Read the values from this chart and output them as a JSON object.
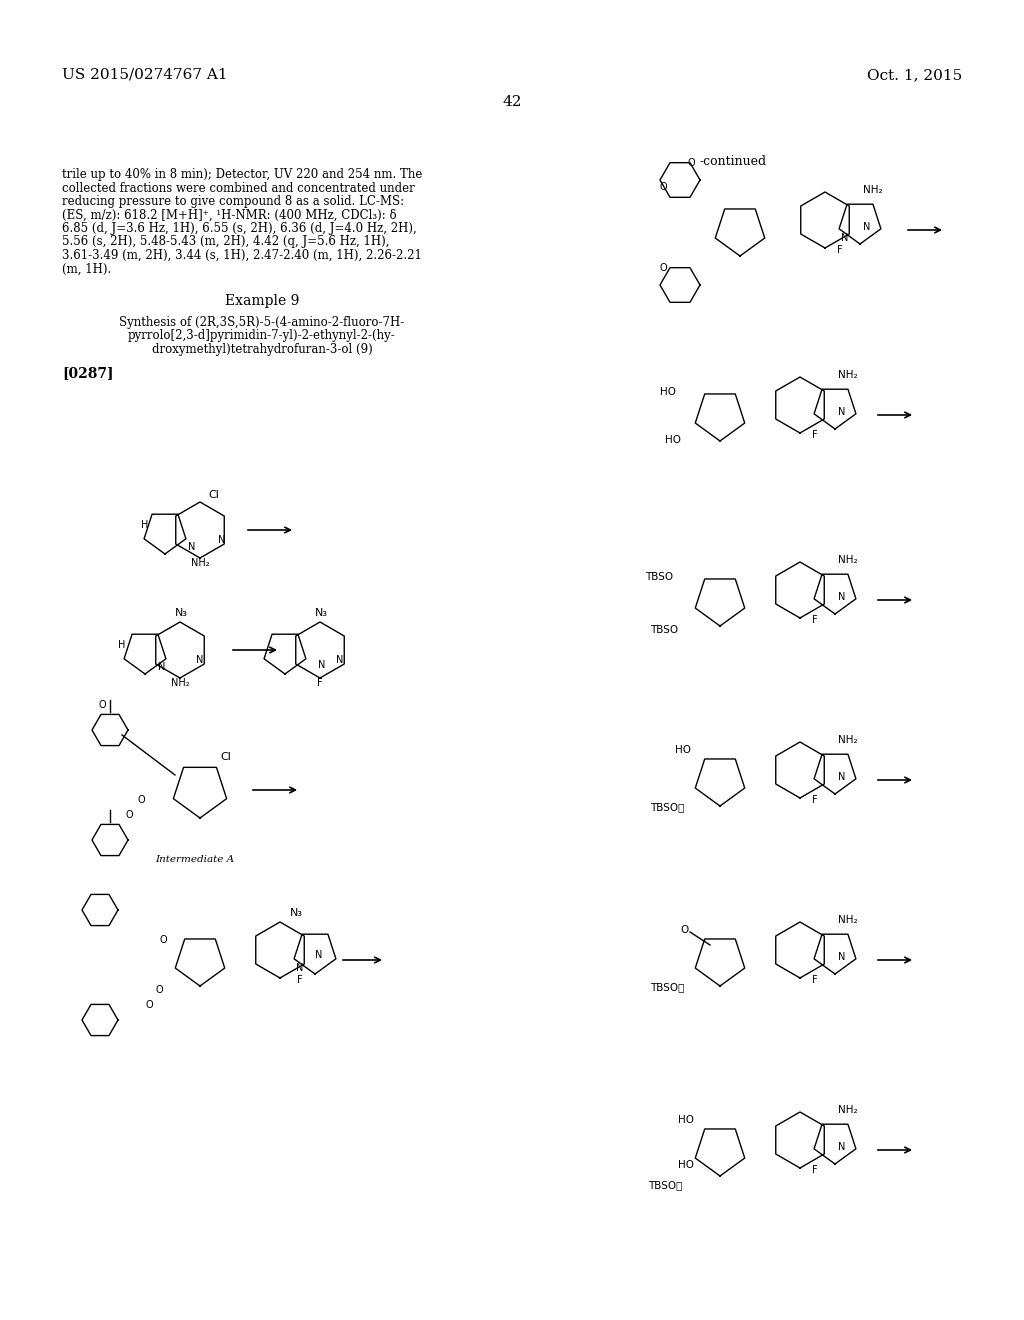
{
  "bg_color": "#ffffff",
  "header_left": "US 2015/0274767 A1",
  "header_right": "Oct. 1, 2015",
  "page_number": "42",
  "continued_label": "-continued",
  "paragraph_text": "trile up to 40% in 8 min); Detector, UV 220 and 254 nm. The collected fractions were combined and concentrated under reducing pressure to give compound 8 as a solid. LC-MS: (ES, m/z): 618.2 [M+H]⁺, ¹H-NMR: (400 MHz, CDCl₃): δ 6.85 (d, J=3.6 Hz, 1H), 6.55 (s, 2H), 6.36 (d, J=4.0 Hz, 2H), 5.56 (s, 2H), 5.48-5.43 (m, 2H), 4.42 (q, J=5.6 Hz, 1H), 3.61-3.49 (m, 2H), 3.44 (s, 1H), 2.47-2.40 (m, 1H), 2.26-2.21 (m, 1H).",
  "example_title": "Example 9",
  "synthesis_title": "Synthesis of (2R,3S,5R)-5-(4-amino-2-fluoro-7H-\npyrrolo[2,3-d]pyrimidin-7-yl)-2-ethynyl-2-(hy-\ndroxymethyl)tetrahydrofuran-3-ol (9)",
  "paragraph_ref": "[0287]",
  "intermediate_label": "Intermediate A",
  "font_size_header": 11,
  "font_size_body": 9,
  "font_size_example": 10,
  "font_size_ref": 10
}
